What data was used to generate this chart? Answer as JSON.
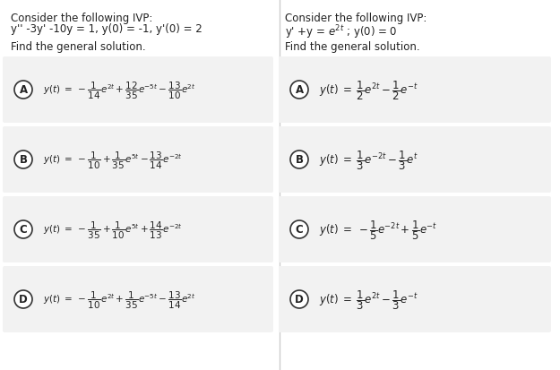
{
  "bg_color": "#ffffff",
  "left_title1": "Consider the following IVP:",
  "left_title2": "y'' -3y' -10y = 1, y(0) = -1, y'(0) = 2",
  "left_subtitle": "Find the general solution.",
  "right_title1": "Consider the following IVP:",
  "right_title2": "y' +y = e$^{2t}$ ; y(0) = 0",
  "right_subtitle": "Find the general solution.",
  "left_options": [
    {
      "label": "A",
      "expr": "$y(t)\\;=\\;-\\dfrac{1}{14}e^{2t}+\\dfrac{12}{35}e^{-5t}-\\dfrac{13}{10}e^{2t}$"
    },
    {
      "label": "B",
      "expr": "$y(t)\\;=\\;-\\dfrac{1}{10}+\\dfrac{1}{35}e^{5t}-\\dfrac{13}{14}e^{-2t}$"
    },
    {
      "label": "C",
      "expr": "$y(t)\\;=\\;-\\dfrac{1}{35}+\\dfrac{1}{10}e^{5t}+\\dfrac{14}{13}e^{-2t}$"
    },
    {
      "label": "D",
      "expr": "$y(t)\\;=\\;-\\dfrac{1}{10}e^{2t}+\\dfrac{1}{35}e^{-5t}-\\dfrac{13}{14}e^{2t}$"
    }
  ],
  "right_options": [
    {
      "label": "A",
      "expr": "$y(t)\\;=\\;\\dfrac{1}{2}e^{2t}-\\dfrac{1}{2}e^{-t}$"
    },
    {
      "label": "B",
      "expr": "$y(t)\\;=\\;\\dfrac{1}{3}e^{-2t}-\\dfrac{1}{3}e^{t}$"
    },
    {
      "label": "C",
      "expr": "$y(t)\\;=\\;-\\dfrac{1}{5}e^{-2t}+\\dfrac{1}{5}e^{-t}$"
    },
    {
      "label": "D",
      "expr": "$y(t)\\;=\\;\\dfrac{1}{3}e^{2t}-\\dfrac{1}{3}e^{-t}$"
    }
  ],
  "option_bg": "#f0f0f0",
  "option_bg_alt": "#e8e8e8",
  "text_color": "#222222",
  "divider_color": "#cccccc"
}
